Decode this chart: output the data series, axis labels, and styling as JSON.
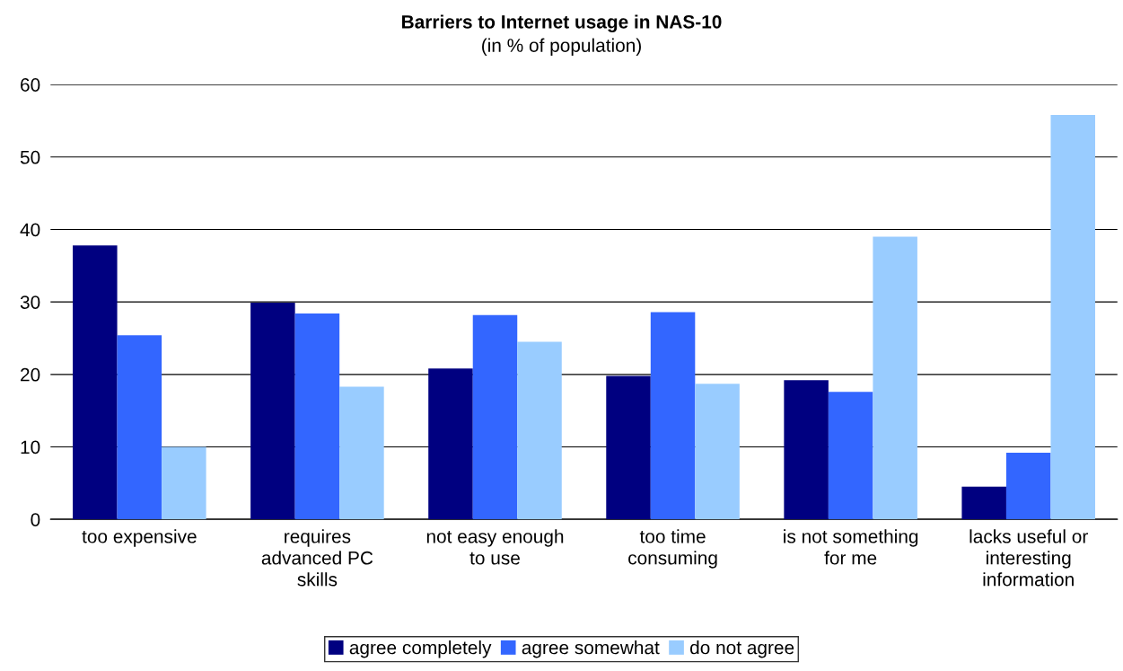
{
  "chart_data": {
    "type": "bar",
    "title": "Barriers to Internet usage in NAS-10",
    "subtitle": "(in % of population)",
    "categories": [
      "too expensive",
      "requires\nadvanced PC\nskills",
      "not easy enough\nto use",
      "too time\nconsuming",
      "is not something\nfor me",
      "lacks useful or\ninteresting\ninformation"
    ],
    "series": [
      {
        "name": "agree completely",
        "color": "#000080",
        "values": [
          37.8,
          29.9,
          20.8,
          19.8,
          19.2,
          4.5
        ]
      },
      {
        "name": "agree somewhat",
        "color": "#3366ff",
        "values": [
          25.4,
          28.4,
          28.2,
          28.6,
          17.6,
          9.2
        ]
      },
      {
        "name": "do not agree",
        "color": "#99ccff",
        "values": [
          10.0,
          18.3,
          24.5,
          18.7,
          39.0,
          55.8
        ]
      }
    ],
    "ylim": [
      0,
      60
    ],
    "yticks": [
      0,
      10,
      20,
      30,
      40,
      50,
      60
    ],
    "grid": "y",
    "legend": "bottom"
  }
}
